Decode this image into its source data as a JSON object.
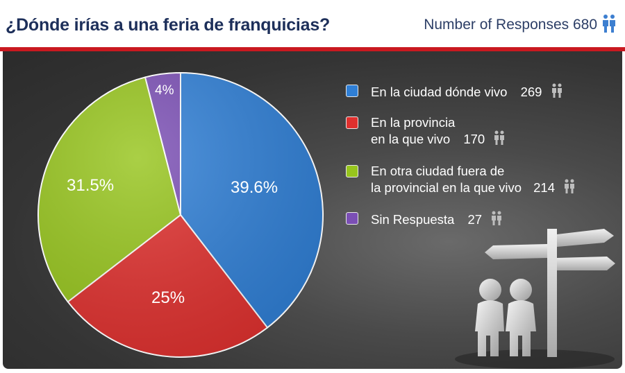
{
  "header": {
    "title": "¿Dónde irías a una feria de franquicias?",
    "responses_label": "Number of Responses 680"
  },
  "legend": [
    {
      "line1": "En la ciudad dónde vivo",
      "line2": "",
      "count": "269"
    },
    {
      "line1": "En la provincia",
      "line2": "en la que vivo",
      "count": "170"
    },
    {
      "line1": "En otra ciudad fuera de",
      "line2": "la provincial en la que vivo",
      "count": "214"
    },
    {
      "line1": "Sin Respuesta",
      "line2": "",
      "count": "27"
    }
  ],
  "chart_data": {
    "type": "pie",
    "categories": [
      "En la ciudad dónde vivo",
      "En la provincia en la que vivo",
      "En otra ciudad fuera de la provincial en la que vivo",
      "Sin Respuesta"
    ],
    "values": [
      39.6,
      25,
      31.5,
      4
    ],
    "counts": [
      269,
      170,
      214,
      27
    ],
    "labels": [
      "39.6%",
      "25%",
      "31.5%",
      "4%"
    ],
    "colors": [
      "#2f7fd6",
      "#e0302e",
      "#97c51d",
      "#7b4fb5"
    ],
    "total_responses": 680
  },
  "icons": {
    "responses": "people-icon",
    "legend": "people-icon"
  }
}
